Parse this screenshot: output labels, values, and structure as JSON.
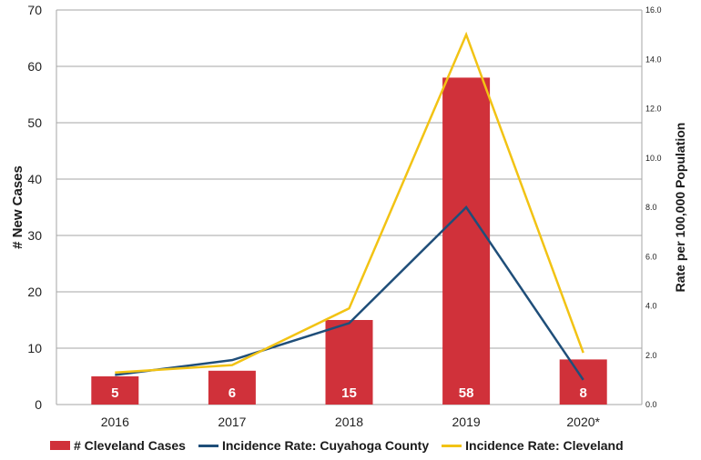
{
  "chart_data": {
    "type": "bar",
    "categories": [
      "2016",
      "2017",
      "2018",
      "2019",
      "2020*"
    ],
    "series": [
      {
        "name": "# Cleveland Cases",
        "type": "bar",
        "axis": "left",
        "values": [
          5,
          6,
          15,
          58,
          8
        ],
        "color": "#d0313a"
      },
      {
        "name": "Incidence Rate: Cuyahoga County",
        "type": "line",
        "axis": "right",
        "values": [
          1.2,
          1.8,
          3.3,
          8.0,
          1.0
        ],
        "color": "#1f4e79"
      },
      {
        "name": "Incidence Rate: Cleveland",
        "type": "line",
        "axis": "right",
        "values": [
          1.3,
          1.6,
          3.9,
          15.0,
          2.1
        ],
        "color": "#f2c314"
      }
    ],
    "data_labels": [
      "5",
      "6",
      "15",
      "58",
      "8"
    ],
    "ylabel": "# New Cases",
    "y2label": "Rate per 100,000 Population",
    "ylim": [
      0,
      70
    ],
    "yticks": [
      0,
      10,
      20,
      30,
      40,
      50,
      60,
      70
    ],
    "y2lim": [
      0,
      16
    ],
    "y2ticks": [
      "0.0",
      "2.0",
      "4.0",
      "6.0",
      "8.0",
      "10.0",
      "12.0",
      "14.0",
      "16.0"
    ],
    "grid": true,
    "legend_position": "bottom"
  }
}
